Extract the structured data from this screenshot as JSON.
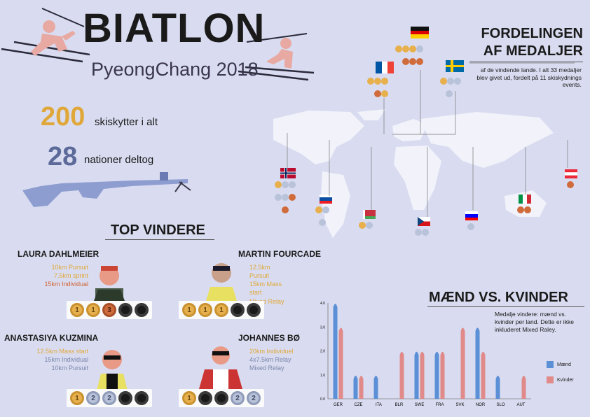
{
  "header": {
    "title": "BIATLON",
    "subtitle": "PyeongChang 2018"
  },
  "stats": {
    "athletes_num": "200",
    "athletes_text": "skiskytter i alt",
    "nations_num": "28",
    "nations_text": "nationer deltog"
  },
  "distribution": {
    "heading_line1": "FORDELINGEN",
    "heading_line2": "AF MEDALJER",
    "description": "af de vindende lande. I alt 33 medaljer blev givet ud, fordelt på 11 skiskydnings events."
  },
  "top_winners": {
    "heading": "TOP VINDERE",
    "athletes": [
      {
        "name": "LAURA DAHLMEIER",
        "events": [
          "10km Pursuit",
          "7.5km sprint",
          "15km  Individual"
        ],
        "event_colors": [
          "#e0a83a",
          "#e0a83a",
          "#d0602f"
        ],
        "medals": [
          "1",
          "1",
          "3",
          "",
          ""
        ]
      },
      {
        "name": "MARTIN  FOURCADE",
        "events": [
          "12.5km Pursuit",
          "15km Mass start",
          "Mixed Relay"
        ],
        "event_colors": [
          "#e0a83a",
          "#e0a83a",
          "#e0a83a"
        ],
        "medals": [
          "1",
          "1",
          "1",
          "",
          ""
        ]
      },
      {
        "name": "ANASTASIYA KUZMINA",
        "events": [
          "12.5km Mass start",
          "15km Individual",
          "10km Pursuit"
        ],
        "event_colors": [
          "#e0a83a",
          "#7a86aa",
          "#7a86aa"
        ],
        "medals": [
          "1",
          "2",
          "2",
          "",
          ""
        ]
      },
      {
        "name": "JOHANNES BØ",
        "events": [
          "20km Individuel",
          "4x7.5km  Relay",
          "Mixed Relay"
        ],
        "event_colors": [
          "#e0a83a",
          "#7a86aa",
          "#7a86aa"
        ],
        "medals": [
          "1",
          "",
          "",
          "2",
          "2"
        ]
      }
    ]
  },
  "mvk": {
    "heading": "MÆND VS. KVINDER",
    "description": "Medalje vindere: mænd vs. kvinder per land. Dette er ikke inkluderet Mixed Raley.",
    "legend_men": "Mænd",
    "legend_women": "Kvinder"
  },
  "colors": {
    "men": "#5b8fd6",
    "women": "#e08a8a",
    "gold": "#e7b04c",
    "silver": "#b8c2d9",
    "bronze": "#d06b3c",
    "map": "#f1f2fa"
  },
  "chart_data": {
    "type": "bar",
    "categories": [
      "GER",
      "CZE",
      "ITA",
      "BLR",
      "SWE",
      "FRA",
      "SVK",
      "NOR",
      "SLO",
      "AUT"
    ],
    "series": [
      {
        "name": "Mænd",
        "values": [
          4,
          1,
          1,
          0,
          2,
          2,
          0,
          3,
          1,
          0
        ]
      },
      {
        "name": "Kvinder",
        "values": [
          3,
          1,
          0,
          2,
          2,
          2,
          3,
          2,
          0,
          1
        ]
      }
    ],
    "y_ticks": [
      "0.0",
      "0.5",
      "1.0",
      "1.5",
      "2.0",
      "2.5",
      "3.0",
      "3.5",
      "4.0"
    ],
    "ylim": [
      0,
      4
    ]
  }
}
